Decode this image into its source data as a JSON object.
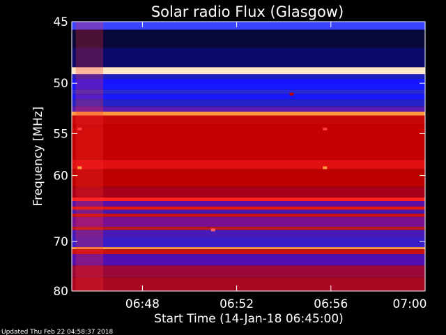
{
  "chart_data": {
    "type": "heatmap",
    "title": "Solar radio Flux (Glasgow)",
    "xlabel": "Start Time (14-Jan-18 06:45:00)",
    "ylabel": "Frequency [MHz]",
    "x_range": [
      "06:45",
      "07:00"
    ],
    "x_ticks": [
      "06:48",
      "06:52",
      "06:56",
      "07:00"
    ],
    "ylim": [
      45,
      80
    ],
    "y_ticks": [
      "45",
      "50",
      "55",
      "60",
      "70",
      "80"
    ],
    "y_scale": "reciprocal",
    "colors": {
      "background": "#000000",
      "low": "#000040",
      "mid": "#3030ff",
      "high": "#c00000",
      "peak": "#ffe0b0"
    },
    "bands": [
      {
        "from": 45.0,
        "to": 45.6,
        "color": "#3a44ff"
      },
      {
        "from": 45.6,
        "to": 47.0,
        "color": "#08083a"
      },
      {
        "from": 47.0,
        "to": 48.6,
        "color": "#0a0a6a"
      },
      {
        "from": 48.6,
        "to": 49.2,
        "color": "#ffe8c8"
      },
      {
        "from": 49.2,
        "to": 49.6,
        "color": "#2020c0"
      },
      {
        "from": 49.6,
        "to": 50.6,
        "color": "#1616ff"
      },
      {
        "from": 50.6,
        "to": 51.0,
        "color": "#2a2ad8"
      },
      {
        "from": 51.0,
        "to": 51.5,
        "color": "#1818ff"
      },
      {
        "from": 51.5,
        "to": 52.2,
        "color": "#2424c8"
      },
      {
        "from": 52.2,
        "to": 52.7,
        "color": "#5a1cb0"
      },
      {
        "from": 52.7,
        "to": 53.1,
        "color": "#ff9a40"
      },
      {
        "from": 53.1,
        "to": 54.0,
        "color": "#c80808"
      },
      {
        "from": 54.0,
        "to": 58.0,
        "color": "#c40000"
      },
      {
        "from": 58.0,
        "to": 59.2,
        "color": "#e01010"
      },
      {
        "from": 59.2,
        "to": 61.5,
        "color": "#bc0000"
      },
      {
        "from": 61.5,
        "to": 63.0,
        "color": "#a80018"
      },
      {
        "from": 63.0,
        "to": 63.5,
        "color": "#ff2020"
      },
      {
        "from": 63.5,
        "to": 64.3,
        "color": "#5a10a8"
      },
      {
        "from": 64.3,
        "to": 64.8,
        "color": "#e01818"
      },
      {
        "from": 64.8,
        "to": 65.4,
        "color": "#4818b0"
      },
      {
        "from": 65.4,
        "to": 65.9,
        "color": "#cc1010"
      },
      {
        "from": 65.9,
        "to": 67.5,
        "color": "#7a1090"
      },
      {
        "from": 67.5,
        "to": 68.0,
        "color": "#c01818"
      },
      {
        "from": 68.0,
        "to": 69.2,
        "color": "#4a1ab8"
      },
      {
        "from": 69.2,
        "to": 71.0,
        "color": "#3a1ec8"
      },
      {
        "from": 71.0,
        "to": 71.4,
        "color": "#ff9a50"
      },
      {
        "from": 71.4,
        "to": 72.3,
        "color": "#c81010"
      },
      {
        "from": 72.3,
        "to": 74.5,
        "color": "#5010b0"
      },
      {
        "from": 74.5,
        "to": 77.0,
        "color": "#9a0838"
      },
      {
        "from": 77.0,
        "to": 80.0,
        "color": "#a80820"
      }
    ],
    "features": [
      {
        "time": "06:45:10",
        "time_to": "06:46:20",
        "freq_from": 45.0,
        "freq_to": 80.0,
        "color": "#ff3030",
        "opacity": 0.28
      },
      {
        "time": "06:45:20",
        "freq": 54.5,
        "color": "#ff4040"
      },
      {
        "time": "06:45:20",
        "freq": 59.0,
        "color": "#ff9a40"
      },
      {
        "time": "06:55:45",
        "freq": 54.5,
        "color": "#ff4040"
      },
      {
        "time": "06:55:45",
        "freq": 59.0,
        "color": "#ff9a40"
      },
      {
        "time": "06:54:20",
        "freq": 51.0,
        "color": "#c00000"
      },
      {
        "time": "06:51:00",
        "freq": 68.0,
        "color": "#ff6060"
      }
    ],
    "footer": "Updated Thu Feb 22 04:58:37 2018"
  }
}
